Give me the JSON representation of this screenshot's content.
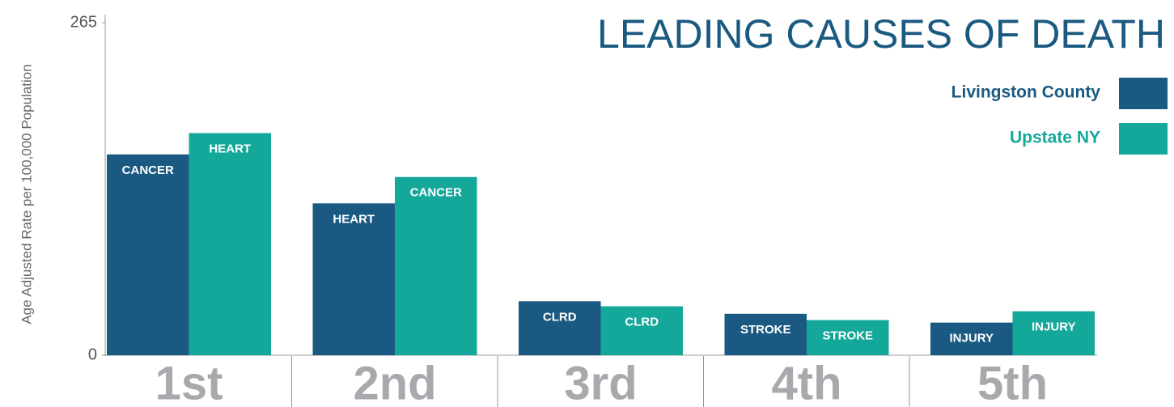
{
  "chart_data": {
    "type": "bar",
    "title": "LEADING CAUSES OF DEATH",
    "y_label": "Age Adjusted Rate per 100,000 Population",
    "categories": [
      "1st",
      "2nd",
      "3rd",
      "4th",
      "5th"
    ],
    "series": [
      {
        "name": "Livingston County",
        "color": "#1a5a82",
        "values": [
          160,
          121,
          43,
          33,
          26
        ],
        "labels": [
          "CANCER",
          "HEART",
          "CLRD",
          "STROKE",
          "INJURY"
        ]
      },
      {
        "name": "Upstate NY",
        "color": "#14a89a",
        "values": [
          177,
          142,
          39,
          28,
          35
        ],
        "labels": [
          "HEART",
          "CANCER",
          "CLRD",
          "STROKE",
          "INJURY"
        ]
      }
    ],
    "ylim": [
      0,
      265
    ],
    "yticks": [
      0,
      265
    ],
    "legend": "top-right",
    "grid": false
  }
}
